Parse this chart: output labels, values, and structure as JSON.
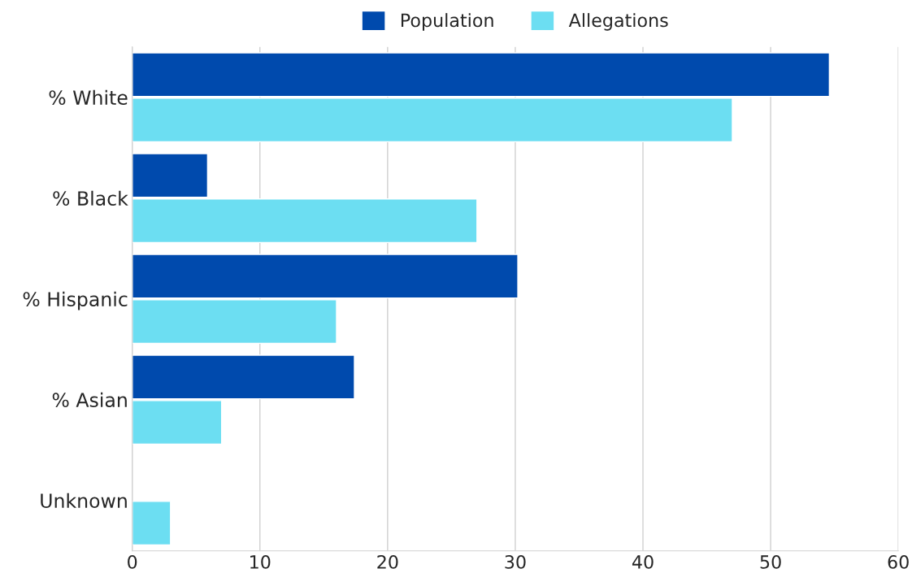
{
  "chart_data": {
    "type": "bar",
    "orientation": "horizontal",
    "categories": [
      "% White",
      "% Black",
      "% Hispanic",
      "% Asian",
      "Unknown"
    ],
    "series": [
      {
        "name": "Population",
        "color": "#004aad",
        "values": [
          54.6,
          5.9,
          30.2,
          17.4,
          null
        ]
      },
      {
        "name": "Allegations",
        "color": "#6cdef2",
        "values": [
          47.0,
          27.0,
          16.0,
          7.0,
          3.0
        ]
      }
    ],
    "xlim": [
      0,
      60
    ],
    "xticks": [
      0,
      10,
      20,
      30,
      40,
      50,
      60
    ],
    "grid": "x",
    "legend": "top"
  }
}
